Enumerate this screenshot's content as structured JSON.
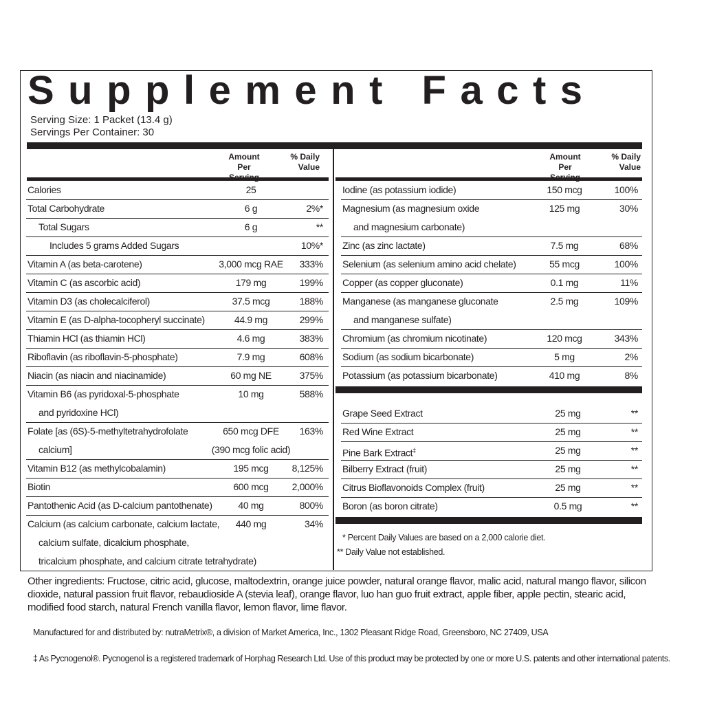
{
  "title": "Supplement Facts",
  "serving_size": "Serving Size: 1 Packet (13.4 g)",
  "servings_per_container": "Servings Per Container: 30",
  "headers": {
    "amount": "Amount Per Serving",
    "dv": "% Daily Value"
  },
  "left_rows": [
    {
      "name": [
        "Calories"
      ],
      "amount": [
        "25"
      ]
    },
    {
      "name": [
        "Total Carbohydrate"
      ],
      "amount": [
        "6 g"
      ],
      "dv": "2%*"
    },
    {
      "name": [
        "Total Sugars"
      ],
      "amount": [
        "6 g"
      ],
      "dv": "**"
    },
    {
      "name": [
        "Includes 5 grams Added Sugars"
      ],
      "dv": "10%*"
    },
    {
      "name": [
        "Vitamin A (as beta-carotene)"
      ],
      "amount": [
        "3,000 mcg RAE"
      ],
      "dv": "333%"
    },
    {
      "name": [
        "Vitamin C (as ascorbic acid)"
      ],
      "amount": [
        "179 mg"
      ],
      "dv": "199%"
    },
    {
      "name": [
        "Vitamin D3 (as cholecalciferol)"
      ],
      "amount": [
        "37.5 mcg"
      ],
      "dv": "188%"
    },
    {
      "name": [
        "Vitamin E (as D-alpha-tocopheryl succinate)"
      ],
      "amount": [
        "44.9 mg"
      ],
      "dv": "299%"
    },
    {
      "name": [
        "Thiamin HCl (as thiamin HCl)"
      ],
      "amount": [
        "4.6 mg"
      ],
      "dv": "383%"
    },
    {
      "name": [
        "Riboflavin (as riboflavin-5-phosphate)"
      ],
      "amount": [
        "7.9 mg"
      ],
      "dv": "608%"
    },
    {
      "name": [
        "Niacin (as niacin and niacinamide)"
      ],
      "amount": [
        "60 mg NE"
      ],
      "dv": "375%"
    },
    {
      "name": [
        "Vitamin B6 (as pyridoxal-5-phosphate",
        "and pyridoxine HCl)"
      ],
      "amount": [
        "10 mg"
      ],
      "dv": "588%"
    },
    {
      "name": [
        "Folate [as (6S)-5-methyltetrahydrofolate",
        "calcium]"
      ],
      "amount": [
        "650 mcg DFE",
        "(390 mcg folic acid)"
      ],
      "dv": "163%"
    },
    {
      "name": [
        "Vitamin B12 (as methylcobalamin)"
      ],
      "amount": [
        "195 mcg"
      ],
      "dv": "8,125%"
    },
    {
      "name": [
        "Biotin"
      ],
      "amount": [
        "600 mcg"
      ],
      "dv": "2,000%"
    },
    {
      "name": [
        "Pantothenic Acid (as D-calcium pantothenate)"
      ],
      "amount": [
        "40 mg"
      ],
      "dv": "800%"
    },
    {
      "name": [
        "Calcium (as calcium carbonate, calcium lactate,",
        "calcium sulfate, dicalcium phosphate,",
        "tricalcium phosphate, and calcium citrate tetrahydrate)"
      ],
      "amount": [
        "440 mg"
      ],
      "dv": "34%"
    }
  ],
  "right_rows": [
    {
      "name": [
        "Iodine (as potassium iodide)"
      ],
      "amount": [
        "150 mcg"
      ],
      "dv": "100%"
    },
    {
      "name": [
        "Magnesium (as magnesium oxide",
        "and magnesium carbonate)"
      ],
      "amount": [
        "125 mg"
      ],
      "dv": "30%"
    },
    {
      "name": [
        "Zinc (as zinc lactate)"
      ],
      "amount": [
        "7.5 mg"
      ],
      "dv": "68%"
    },
    {
      "name": [
        "Selenium (as selenium amino acid chelate)"
      ],
      "amount": [
        "55 mcg"
      ],
      "dv": "100%"
    },
    {
      "name": [
        "Copper (as copper gluconate)"
      ],
      "amount": [
        "0.1 mg"
      ],
      "dv": "11%"
    },
    {
      "name": [
        "Manganese (as manganese gluconate",
        "and manganese sulfate)"
      ],
      "amount": [
        "2.5 mg"
      ],
      "dv": "109%"
    },
    {
      "name": [
        "Chromium (as chromium nicotinate)"
      ],
      "amount": [
        "120 mcg"
      ],
      "dv": "343%"
    },
    {
      "name": [
        "Sodium (as sodium bicarbonate)"
      ],
      "amount": [
        "5 mg"
      ],
      "dv": "2%"
    },
    {
      "name": [
        "Potassium (as potassium bicarbonate)"
      ],
      "amount": [
        "410 mg"
      ],
      "dv": "8%"
    }
  ],
  "extract_rows": [
    {
      "name": [
        "Grape Seed Extract"
      ],
      "amount": [
        "25 mg"
      ],
      "dv": "**"
    },
    {
      "name": [
        "Red Wine Extract"
      ],
      "amount": [
        "25 mg"
      ],
      "dv": "**"
    },
    {
      "name": [
        "Pine Bark Extract"
      ],
      "note_mark": "‡",
      "amount": [
        "25 mg"
      ],
      "dv": "**"
    },
    {
      "name": [
        "Bilberry Extract (fruit)"
      ],
      "amount": [
        "25 mg"
      ],
      "dv": "**"
    },
    {
      "name": [
        "Citrus Bioflavonoids Complex (fruit)"
      ],
      "amount": [
        "25 mg"
      ],
      "dv": "**"
    },
    {
      "name": [
        "Boron (as boron citrate)"
      ],
      "amount": [
        "0.5 mg"
      ],
      "dv": "**"
    }
  ],
  "footnotes": [
    "* Percent Daily Values are based on a 2,000 calorie diet.",
    "** Daily Value not established."
  ],
  "other_ingredients": "Other ingredients: Fructose, citric acid, glucose, maltodextrin, orange juice powder, natural orange flavor, malic acid, natural mango flavor, silicon dioxide, natural passion fruit flavor, rebaudioside A (stevia leaf), orange flavor, luo han guo fruit extract, apple fiber, apple pectin, stearic acid, modified food starch, natural French vanilla flavor, lemon flavor, lime flavor.",
  "manufactured": "Manufactured for and distributed by: nutraMetrix®, a division of Market America, Inc., 1302 Pleasant Ridge Road, Greensboro, NC 27409, USA",
  "trademark": "‡ As Pycnogenol®. Pycnogenol is a registered trademark of Horphag Research Ltd. Use of this product may be protected by one or more U.S. patents and other international patents."
}
